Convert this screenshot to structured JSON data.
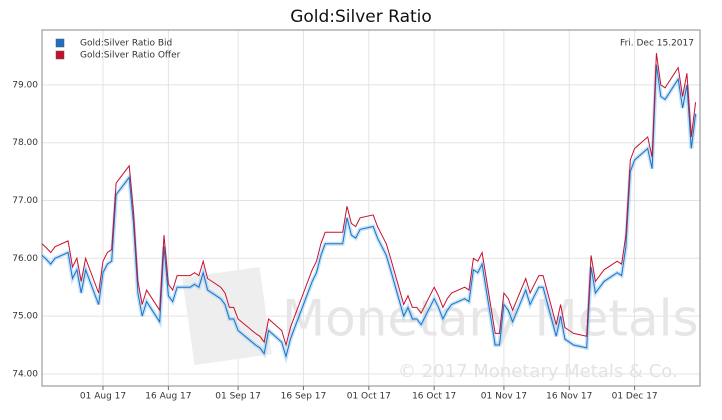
{
  "chart_data": {
    "type": "line",
    "title": "Gold:Silver Ratio",
    "annotation": "Fri. Dec 15.2017",
    "watermark": "Monetary Metals",
    "copyright": "© 2017 Monetary Metals & Co.",
    "x": [
      "2017-07-18",
      "2017-07-19",
      "2017-07-20",
      "2017-07-21",
      "2017-07-24",
      "2017-07-25",
      "2017-07-26",
      "2017-07-27",
      "2017-07-28",
      "2017-07-31",
      "2017-08-01",
      "2017-08-02",
      "2017-08-03",
      "2017-08-04",
      "2017-08-07",
      "2017-08-08",
      "2017-08-09",
      "2017-08-10",
      "2017-08-11",
      "2017-08-14",
      "2017-08-15",
      "2017-08-16",
      "2017-08-17",
      "2017-08-18",
      "2017-08-21",
      "2017-08-22",
      "2017-08-23",
      "2017-08-24",
      "2017-08-25",
      "2017-08-28",
      "2017-08-29",
      "2017-08-30",
      "2017-08-31",
      "2017-09-01",
      "2017-09-05",
      "2017-09-06",
      "2017-09-07",
      "2017-09-08",
      "2017-09-11",
      "2017-09-12",
      "2017-09-13",
      "2017-09-14",
      "2017-09-15",
      "2017-09-18",
      "2017-09-19",
      "2017-09-20",
      "2017-09-21",
      "2017-09-22",
      "2017-09-25",
      "2017-09-26",
      "2017-09-27",
      "2017-09-28",
      "2017-09-29",
      "2017-10-02",
      "2017-10-03",
      "2017-10-04",
      "2017-10-05",
      "2017-10-06",
      "2017-10-09",
      "2017-10-10",
      "2017-10-11",
      "2017-10-12",
      "2017-10-13",
      "2017-10-16",
      "2017-10-17",
      "2017-10-18",
      "2017-10-19",
      "2017-10-20",
      "2017-10-23",
      "2017-10-24",
      "2017-10-25",
      "2017-10-26",
      "2017-10-27",
      "2017-10-30",
      "2017-10-31",
      "2017-11-01",
      "2017-11-02",
      "2017-11-03",
      "2017-11-06",
      "2017-11-07",
      "2017-11-08",
      "2017-11-09",
      "2017-11-10",
      "2017-11-13",
      "2017-11-14",
      "2017-11-15",
      "2017-11-16",
      "2017-11-17",
      "2017-11-20",
      "2017-11-21",
      "2017-11-22",
      "2017-11-24",
      "2017-11-27",
      "2017-11-28",
      "2017-11-29",
      "2017-11-30",
      "2017-12-01",
      "2017-12-04",
      "2017-12-05",
      "2017-12-06",
      "2017-12-07",
      "2017-12-08",
      "2017-12-11",
      "2017-12-12",
      "2017-12-13",
      "2017-12-14",
      "2017-12-15"
    ],
    "series": [
      {
        "name": "Gold:Silver Ratio Bid",
        "color": "#1f6fc4",
        "values": [
          76.05,
          75.98,
          75.9,
          76.0,
          76.1,
          75.65,
          75.8,
          75.4,
          75.8,
          75.2,
          75.75,
          75.9,
          75.95,
          77.1,
          77.4,
          76.6,
          75.4,
          75.0,
          75.25,
          74.9,
          76.2,
          75.35,
          75.25,
          75.5,
          75.5,
          75.55,
          75.5,
          75.75,
          75.45,
          75.3,
          75.2,
          74.95,
          74.95,
          74.75,
          74.5,
          74.45,
          74.35,
          74.75,
          74.55,
          74.3,
          74.6,
          74.8,
          75.0,
          75.6,
          75.75,
          76.05,
          76.25,
          76.25,
          76.25,
          76.7,
          76.4,
          76.35,
          76.5,
          76.55,
          76.35,
          76.2,
          76.05,
          75.8,
          75.0,
          75.15,
          74.95,
          74.95,
          74.85,
          75.3,
          75.15,
          74.95,
          75.1,
          75.2,
          75.3,
          75.25,
          75.8,
          75.75,
          75.9,
          74.5,
          74.5,
          75.2,
          75.1,
          74.9,
          75.45,
          75.2,
          75.35,
          75.5,
          75.5,
          74.65,
          75.0,
          74.6,
          74.55,
          74.5,
          74.45,
          75.85,
          75.4,
          75.6,
          75.75,
          75.7,
          76.2,
          77.5,
          77.7,
          77.9,
          77.55,
          79.35,
          78.8,
          78.75,
          79.1,
          78.6,
          79.0,
          77.9,
          78.5
        ]
      },
      {
        "name": "Gold:Silver Ratio Offer",
        "color": "#c8102e",
        "values": [
          76.25,
          76.18,
          76.1,
          76.2,
          76.3,
          75.85,
          76.0,
          75.6,
          76.0,
          75.4,
          75.95,
          76.1,
          76.15,
          77.3,
          77.6,
          76.8,
          75.6,
          75.2,
          75.45,
          75.1,
          76.4,
          75.55,
          75.45,
          75.7,
          75.7,
          75.75,
          75.7,
          75.95,
          75.65,
          75.5,
          75.4,
          75.15,
          75.15,
          74.95,
          74.7,
          74.65,
          74.55,
          74.95,
          74.75,
          74.5,
          74.8,
          75.0,
          75.2,
          75.8,
          75.95,
          76.25,
          76.45,
          76.45,
          76.45,
          76.9,
          76.6,
          76.55,
          76.7,
          76.75,
          76.55,
          76.4,
          76.25,
          76.0,
          75.2,
          75.35,
          75.15,
          75.15,
          75.05,
          75.5,
          75.35,
          75.15,
          75.3,
          75.4,
          75.5,
          75.45,
          76.0,
          75.95,
          76.1,
          74.7,
          74.7,
          75.4,
          75.3,
          75.1,
          75.65,
          75.4,
          75.55,
          75.7,
          75.7,
          74.85,
          75.2,
          74.8,
          74.75,
          74.7,
          74.65,
          76.05,
          75.6,
          75.8,
          75.95,
          75.9,
          76.4,
          77.7,
          77.9,
          78.1,
          77.75,
          79.55,
          79.0,
          78.95,
          79.3,
          78.8,
          79.2,
          78.1,
          78.7
        ]
      }
    ],
    "xlim": [
      "2017-07-18",
      "2017-12-16"
    ],
    "xticks": [
      {
        "value": "2017-08-01",
        "label": "01 Aug 17"
      },
      {
        "value": "2017-08-16",
        "label": "16 Aug 17"
      },
      {
        "value": "2017-09-01",
        "label": "01 Sep 17"
      },
      {
        "value": "2017-09-16",
        "label": "16 Sep 17"
      },
      {
        "value": "2017-10-01",
        "label": "01 Oct 17"
      },
      {
        "value": "2017-10-16",
        "label": "16 Oct 17"
      },
      {
        "value": "2017-11-01",
        "label": "01 Nov 17"
      },
      {
        "value": "2017-11-16",
        "label": "16 Nov 17"
      },
      {
        "value": "2017-12-01",
        "label": "01 Dec 17"
      }
    ],
    "ylim": [
      73.79,
      79.95
    ],
    "yticks": [
      {
        "value": 74,
        "label": "74.00"
      },
      {
        "value": 75,
        "label": "75.00"
      },
      {
        "value": 76,
        "label": "76.00"
      },
      {
        "value": 77,
        "label": "77.00"
      },
      {
        "value": 78,
        "label": "78.00"
      },
      {
        "value": 79,
        "label": "79.00"
      }
    ],
    "grid": true,
    "legend": "upper left"
  }
}
